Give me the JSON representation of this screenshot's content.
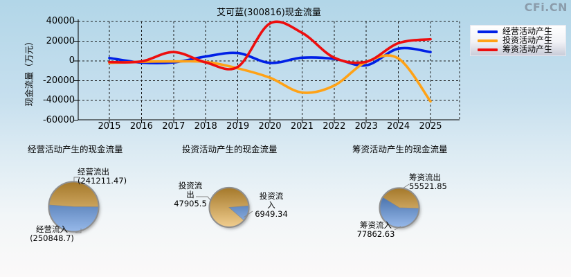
{
  "page": {
    "logo_text": "CFi.CN"
  },
  "chart_data": [
    {
      "type": "line",
      "title": "艾可蓝(300816)现金流量",
      "ylabel": "现金流量（万元）",
      "xlabel": "",
      "x": [
        2015,
        2016,
        2017,
        2018,
        2019,
        2020,
        2021,
        2022,
        2023,
        2024,
        2025
      ],
      "y_ticks": [
        40000,
        20000,
        0,
        -20000,
        -40000,
        -60000
      ],
      "ylim": [
        -60000,
        40000
      ],
      "grid": true,
      "legend_position": "top-right",
      "series": [
        {
          "name": "经营活动产生",
          "color": "#0020e6",
          "values": [
            3000,
            -1700,
            -1500,
            4500,
            8000,
            -2000,
            3300,
            2100,
            -4400,
            12500,
            9000
          ]
        },
        {
          "name": "投资活动产生",
          "color": "#ffa216",
          "values": [
            -2000,
            -800,
            -500,
            -1000,
            -7500,
            -17000,
            -32000,
            -25000,
            -1000,
            2500,
            -41000
          ]
        },
        {
          "name": "筹资活动产生",
          "color": "#ed0e0e",
          "values": [
            -1200,
            -500,
            9000,
            -1500,
            -6000,
            38000,
            28500,
            3300,
            -900,
            18000,
            22000
          ]
        }
      ]
    },
    {
      "type": "pie",
      "title": "经营活动产生的现金流量",
      "start_angle": 184,
      "slices": [
        {
          "name": "经营流出",
          "value": 241211.47,
          "color": "#e5a83c",
          "label_lines": [
            "经营流出",
            "(241211.47)"
          ]
        },
        {
          "name": "经营流入",
          "value": 250848.7,
          "color": "#4a85d9",
          "label_lines": [
            "经营流入",
            "(250848.7)"
          ]
        }
      ]
    },
    {
      "type": "pie",
      "title": "投资活动产生的现金流量",
      "start_angle": 41,
      "slices": [
        {
          "name": "投资流出",
          "value": 47905.5,
          "color": "#e5a83c",
          "label_lines": [
            "投资流",
            "出",
            "47905.5"
          ]
        },
        {
          "name": "投资流入",
          "value": 6949.34,
          "color": "#4a85d9",
          "label_lines": [
            "投资流",
            "入",
            "6949.34"
          ]
        }
      ]
    },
    {
      "type": "pie",
      "title": "筹资活动产生的现金流量",
      "start_angle": 212,
      "slices": [
        {
          "name": "筹资流出",
          "value": 55521.85,
          "color": "#e5a83c",
          "label_lines": [
            "筹资流出",
            "55521.85"
          ]
        },
        {
          "name": "筹资流入",
          "value": 77862.63,
          "color": "#4a85d9",
          "label_lines": [
            "筹资流入",
            "77862.63"
          ]
        }
      ]
    }
  ]
}
